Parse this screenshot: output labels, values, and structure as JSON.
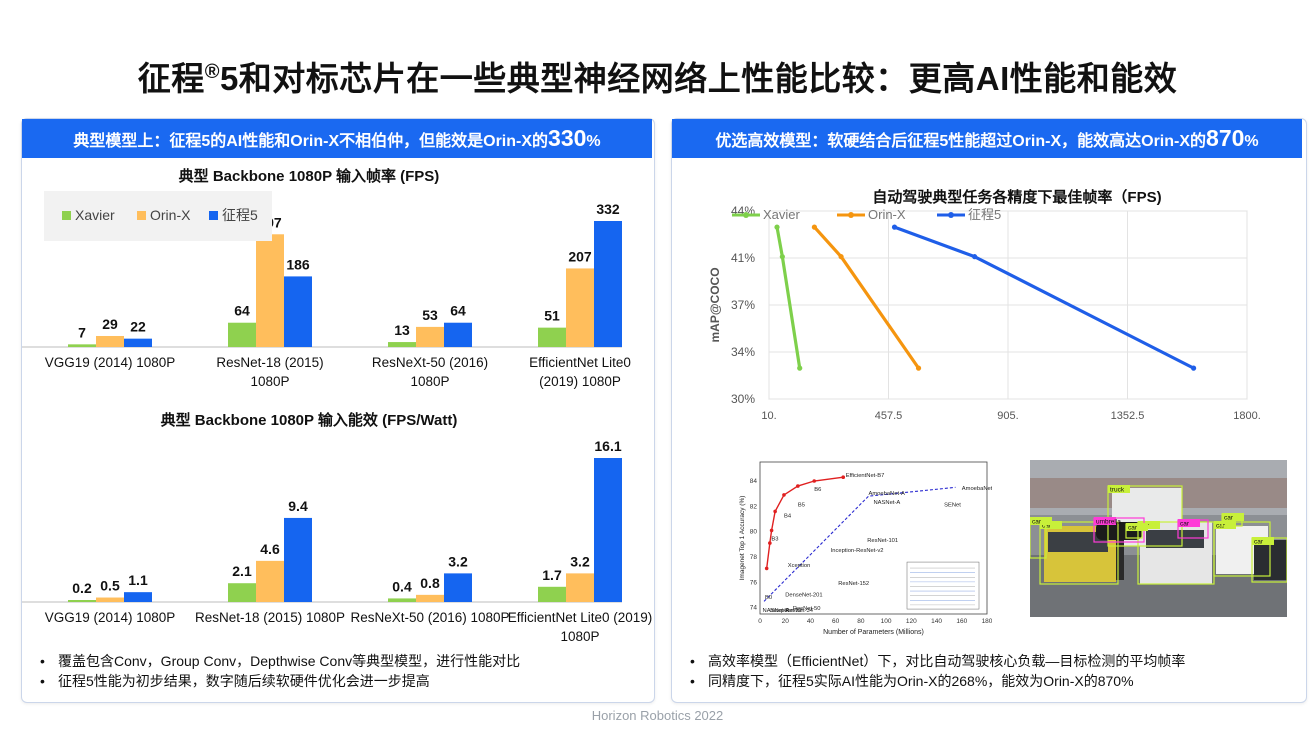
{
  "title": {
    "main_before": "征程",
    "reg": "®",
    "main_after": "5和对标芯片在一些典型神经网络上性能比较：更高AI性能和能效"
  },
  "left_panel": {
    "banner_text": "典型模型上：征程5的AI性能和Orin-X不相伯仲，但能效是Orin-X的",
    "banner_big": "330",
    "banner_suffix": "%",
    "bullets": [
      "覆盖包含Conv，Group Conv，Depthwise Conv等典型模型，进行性能对比",
      "征程5性能为初步结果，数字随后续软硬件优化会进一步提高"
    ]
  },
  "right_panel": {
    "banner_text": "优选高效模型：软硬结合后征程5性能超过Orin-X，能效高达Orin-X的",
    "banner_big": "870",
    "banner_suffix": "%",
    "bullets": [
      "高效率模型（EfficientNet）下，对比自动驾驶核心负载—目标检测的平均帧率",
      "同精度下，征程5实际AI性能为Orin-X的268%，能效为Orin-X的870%"
    ]
  },
  "colors": {
    "xavier": "#8fd14f",
    "orin": "#ffbe5c",
    "j5": "#1565f0",
    "banner": "#1a69f1",
    "line_xavier": "#7ed04b",
    "line_orin": "#f5950f",
    "line_j5": "#1f5ee8"
  },
  "chart_data": [
    {
      "type": "bar",
      "title": "典型 Backbone 1080P 输入帧率 (FPS)",
      "categories": [
        "VGG19 (2014) 1080P",
        "ResNet-18 (2015) 1080P",
        "ResNeXt-50 (2016) 1080P",
        "EfficientNet Lite0 (2019) 1080P"
      ],
      "category_lines": [
        [
          "VGG19 (2014) 1080P"
        ],
        [
          "ResNet-18 (2015)",
          "1080P"
        ],
        [
          "ResNeXt-50 (2016)",
          "1080P"
        ],
        [
          "EfficientNet Lite0",
          "(2019) 1080P"
        ]
      ],
      "series": [
        {
          "name": "Xavier",
          "values": [
            7,
            64,
            13,
            51
          ]
        },
        {
          "name": "Orin-X",
          "values": [
            29,
            297,
            53,
            207
          ]
        },
        {
          "name": "征程5",
          "values": [
            22,
            186,
            64,
            332
          ]
        }
      ],
      "legend": "top-left",
      "ylim": [
        0,
        332
      ]
    },
    {
      "type": "bar",
      "title": "典型 Backbone 1080P 输入能效 (FPS/Watt)",
      "categories": [
        "VGG19 (2014) 1080P",
        "ResNet-18 (2015) 1080P",
        "ResNeXt-50 (2016) 1080P",
        "EfficientNet Lite0 (2019) 1080P"
      ],
      "category_lines": [
        [
          "VGG19 (2014) 1080P"
        ],
        [
          "ResNet-18 (2015) 1080P"
        ],
        [
          "ResNeXt-50 (2016) 1080P"
        ],
        [
          "EfficientNet Lite0 (2019)",
          "1080P"
        ]
      ],
      "series": [
        {
          "name": "Xavier",
          "values": [
            0.2,
            2.1,
            0.4,
            1.7
          ]
        },
        {
          "name": "Orin-X",
          "values": [
            0.5,
            4.6,
            0.8,
            3.2
          ]
        },
        {
          "name": "征程5",
          "values": [
            1.1,
            9.4,
            3.2,
            16.1
          ]
        }
      ],
      "ylim": [
        0,
        16.1
      ]
    },
    {
      "type": "line",
      "title": "自动驾驶典型任务各精度下最佳帧率（FPS)",
      "ylabel": "mAP@COCO",
      "xlim": [
        10,
        1800
      ],
      "x_ticks": [
        "10.",
        "457.5",
        "905.",
        "1352.5",
        "1800."
      ],
      "ylim": [
        30,
        44
      ],
      "y_ticks": [
        "30%",
        "34%",
        "37%",
        "41%",
        "44%"
      ],
      "legend": "top-left",
      "series": [
        {
          "name": "Xavier",
          "points": [
            [
              40,
              42.8
            ],
            [
              60,
              40.6
            ],
            [
              125,
              32.3
            ]
          ]
        },
        {
          "name": "Orin-X",
          "points": [
            [
              180,
              42.8
            ],
            [
              280,
              40.6
            ],
            [
              570,
              32.3
            ]
          ]
        },
        {
          "name": "征程5",
          "points": [
            [
              480,
              42.8
            ],
            [
              780,
              40.6
            ],
            [
              1600,
              32.3
            ]
          ]
        }
      ]
    },
    {
      "type": "scatter",
      "xlabel": "Number of Parameters (Millions)",
      "ylabel": "Imagenet Top 1 Accuracy (%)",
      "xlim": [
        0,
        180
      ],
      "ylim": [
        74,
        84
      ],
      "x_ticks": [
        "0",
        "20",
        "40",
        "60",
        "80",
        "100",
        "120",
        "140",
        "160",
        "180"
      ],
      "y_ticks": [
        "74",
        "76",
        "78",
        "80",
        "82",
        "84"
      ],
      "series": [
        {
          "name": "EfficientNet",
          "points": [
            [
              5.3,
              77.1
            ],
            [
              7.8,
              79.1
            ],
            [
              9.2,
              80.1
            ],
            [
              12,
              81.6
            ],
            [
              19,
              82.9
            ],
            [
              30,
              83.6
            ],
            [
              43,
              84.0
            ],
            [
              66,
              84.3
            ]
          ]
        },
        {
          "name": "AmoebaNet",
          "points": [
            [
              3.2,
              74.5
            ],
            [
              86,
              82.8
            ],
            [
              155,
              83.5
            ]
          ]
        }
      ],
      "point_labels": [
        "EfficientNet-B7",
        "AmoebaNet-A",
        "AmoebaNet-C",
        "NASNet-A",
        "SENet",
        "ResNet-101",
        "Inception-ResNet-v2",
        "Xception",
        "ResNet-152",
        "DenseNet-201",
        "ResNet-50",
        "Inception-v2",
        "NASNet-A",
        "ResNet-34",
        "B0",
        "B3",
        "B4",
        "B5",
        "B6"
      ]
    }
  ],
  "photo_labels": [
    "truck",
    "car",
    "car",
    "car",
    "car",
    "umbrella",
    "car",
    "car",
    "car",
    "car"
  ],
  "footer": "Horizon Robotics 2022"
}
